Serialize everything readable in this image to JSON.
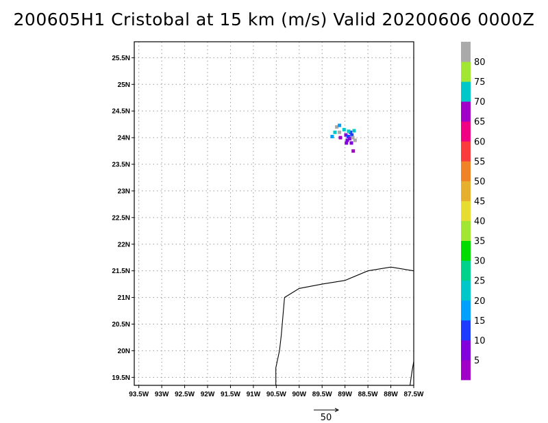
{
  "title": "200605H1 Cristobal at 15 km (m/s) Valid 20200606 0000Z",
  "map": {
    "lon_range": [
      -93.6,
      -87.5
    ],
    "lat_range": [
      19.35,
      25.8
    ],
    "x_ticks": [
      {
        "value": -93.5,
        "label": "93.5W"
      },
      {
        "value": -93.0,
        "label": "93W"
      },
      {
        "value": -92.5,
        "label": "92.5W"
      },
      {
        "value": -92.0,
        "label": "92W"
      },
      {
        "value": -91.5,
        "label": "91.5W"
      },
      {
        "value": -91.0,
        "label": "91W"
      },
      {
        "value": -90.5,
        "label": "90.5W"
      },
      {
        "value": -90.0,
        "label": "90W"
      },
      {
        "value": -89.5,
        "label": "89.5W"
      },
      {
        "value": -89.0,
        "label": "89W"
      },
      {
        "value": -88.5,
        "label": "88.5W"
      },
      {
        "value": -88.0,
        "label": "88W"
      },
      {
        "value": -87.5,
        "label": "87.5W"
      }
    ],
    "y_ticks": [
      {
        "value": 19.5,
        "label": "19.5N"
      },
      {
        "value": 20.0,
        "label": "20N"
      },
      {
        "value": 20.5,
        "label": "20.5N"
      },
      {
        "value": 21.0,
        "label": "21N"
      },
      {
        "value": 21.5,
        "label": "21.5N"
      },
      {
        "value": 22.0,
        "label": "22N"
      },
      {
        "value": 22.5,
        "label": "22.5N"
      },
      {
        "value": 23.0,
        "label": "23N"
      },
      {
        "value": 23.5,
        "label": "23.5N"
      },
      {
        "value": 24.0,
        "label": "24N"
      },
      {
        "value": 24.5,
        "label": "24.5N"
      },
      {
        "value": 25.0,
        "label": "25N"
      },
      {
        "value": 25.5,
        "label": "25.5N"
      }
    ],
    "grid": true,
    "coastline": [
      [
        -90.51,
        19.35
      ],
      [
        -90.51,
        19.68
      ],
      [
        -90.43,
        20.0
      ],
      [
        -90.39,
        20.3
      ],
      [
        -90.36,
        20.6
      ],
      [
        -90.32,
        21.0
      ],
      [
        -90.0,
        21.17
      ],
      [
        -89.5,
        21.25
      ],
      [
        -89.0,
        21.32
      ],
      [
        -88.5,
        21.5
      ],
      [
        -88.0,
        21.57
      ],
      [
        -87.5,
        21.5
      ]
    ],
    "coastline_east": [
      [
        -87.58,
        19.35
      ],
      [
        -87.54,
        19.6
      ],
      [
        -87.5,
        19.8
      ]
    ],
    "wind_cells": [
      {
        "lon": -88.98,
        "lat": 24.05,
        "value": 8
      },
      {
        "lon": -88.93,
        "lat": 24.02,
        "value": 12
      },
      {
        "lon": -88.9,
        "lat": 23.98,
        "value": 9
      },
      {
        "lon": -88.95,
        "lat": 23.95,
        "value": 6
      },
      {
        "lon": -88.88,
        "lat": 24.1,
        "value": 11
      },
      {
        "lon": -88.85,
        "lat": 24.05,
        "value": 10
      },
      {
        "lon": -88.92,
        "lat": 24.12,
        "value": 72
      },
      {
        "lon": -88.8,
        "lat": 24.13,
        "value": 73
      },
      {
        "lon": -88.83,
        "lat": 24.0,
        "value": 82
      },
      {
        "lon": -88.78,
        "lat": 23.95,
        "value": 84
      },
      {
        "lon": -88.97,
        "lat": 23.9,
        "value": 8
      },
      {
        "lon": -88.86,
        "lat": 23.9,
        "value": 7
      },
      {
        "lon": -89.18,
        "lat": 24.2,
        "value": 82
      },
      {
        "lon": -89.12,
        "lat": 24.23,
        "value": 18
      },
      {
        "lon": -89.22,
        "lat": 24.1,
        "value": 21
      },
      {
        "lon": -89.28,
        "lat": 24.02,
        "value": 17
      },
      {
        "lon": -89.12,
        "lat": 24.1,
        "value": 83
      },
      {
        "lon": -89.1,
        "lat": 24.0,
        "value": 4
      },
      {
        "lon": -89.02,
        "lat": 24.15,
        "value": 73
      },
      {
        "lon": -88.82,
        "lat": 23.75,
        "value": 3
      }
    ]
  },
  "colorbar": {
    "colors": [
      "#a000c8",
      "#8200dc",
      "#1e3cff",
      "#00a0ff",
      "#00c8c8",
      "#00d28c",
      "#00dc00",
      "#a0e632",
      "#e6dc32",
      "#e6af2d",
      "#f08228",
      "#fa3c3c",
      "#f00082",
      "#a000c8",
      "#00c8c8",
      "#a0e632",
      "#aaaaaa"
    ],
    "labels": [
      "5",
      "10",
      "15",
      "20",
      "25",
      "30",
      "35",
      "40",
      "45",
      "50",
      "55",
      "60",
      "65",
      "70",
      "75",
      "80"
    ]
  },
  "vector_key": {
    "label": "50"
  }
}
